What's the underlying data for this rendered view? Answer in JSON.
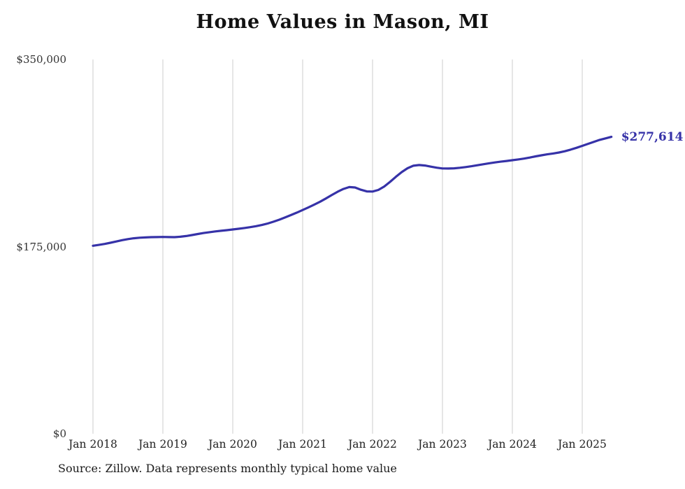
{
  "chart": {
    "title": "Home Values in Mason, MI",
    "end_label": "$277,614",
    "source": "Source: Zillow. Data represents monthly typical home value",
    "line_color": "#3632a8",
    "grid_color": "#cccccc"
  },
  "chart_data": {
    "type": "line",
    "title": "Home Values in Mason, MI",
    "x_start": "Jan 2018",
    "x_end": "Jun 2025",
    "x_tick_labels": [
      "Jan 2018",
      "Jan 2019",
      "Jan 2020",
      "Jan 2021",
      "Jan 2022",
      "Jan 2023",
      "Jan 2024",
      "Jan 2025"
    ],
    "y_ticks": [
      {
        "label": "$0",
        "value": 0
      },
      {
        "label": "$175,000",
        "value": 175000
      },
      {
        "label": "$350,000",
        "value": 350000
      }
    ],
    "ylim": [
      0,
      350000
    ],
    "grid": "vertical-only",
    "legend": "none",
    "end_value": 277614,
    "end_value_label": "$277,614",
    "source": "Source: Zillow. Data represents monthly typical home value",
    "series": [
      {
        "name": "Typical home value (monthly)",
        "values": [
          175800,
          176600,
          177500,
          178600,
          179800,
          181000,
          182000,
          182800,
          183300,
          183600,
          183800,
          183900,
          184000,
          183900,
          183800,
          184200,
          184900,
          185800,
          186800,
          187700,
          188500,
          189200,
          189800,
          190400,
          191000,
          191700,
          192400,
          193200,
          194100,
          195200,
          196600,
          198300,
          200200,
          202300,
          204500,
          206800,
          209200,
          211700,
          214300,
          217000,
          220000,
          223200,
          226300,
          228900,
          230700,
          230300,
          228200,
          226600,
          226500,
          228000,
          231200,
          235500,
          240200,
          244700,
          248300,
          250600,
          251300,
          250800,
          249800,
          248800,
          248100,
          248000,
          248200,
          248700,
          249400,
          250200,
          251100,
          252000,
          252900,
          253700,
          254400,
          255100,
          255800,
          256500,
          257300,
          258300,
          259400,
          260400,
          261300,
          262100,
          263000,
          264200,
          265700,
          267400,
          269200,
          271100,
          273000,
          274800,
          276200,
          277614
        ]
      }
    ]
  }
}
